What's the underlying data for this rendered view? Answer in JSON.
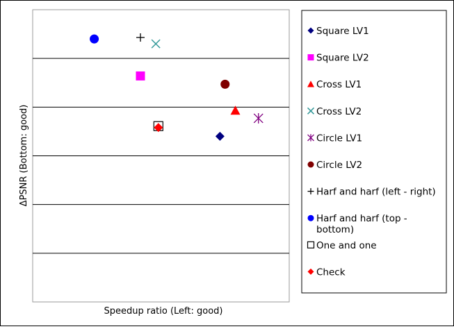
{
  "chart_data": {
    "type": "scatter",
    "xlabel": "Speedup ratio (Left: good)",
    "ylabel": "ΔPSNR (Bottom: good)",
    "xlim": [
      0,
      1
    ],
    "ylim": [
      0,
      6
    ],
    "grid": true,
    "legend_position": "right",
    "series": [
      {
        "name": "Square LV1",
        "marker": "diamond",
        "color": "#000080",
        "x": 0.73,
        "y": 3.4
      },
      {
        "name": "Square LV2",
        "marker": "square",
        "color": "#ff00ff",
        "x": 0.42,
        "y": 4.64
      },
      {
        "name": "Cross LV1",
        "marker": "triangle",
        "color": "#ff0000",
        "x": 0.79,
        "y": 3.93
      },
      {
        "name": "Cross LV2",
        "marker": "x",
        "color": "#339999",
        "x": 0.48,
        "y": 5.3
      },
      {
        "name": "Circle LV1",
        "marker": "asterisk",
        "color": "#800080",
        "x": 0.88,
        "y": 3.77
      },
      {
        "name": "Circle LV2",
        "marker": "circle",
        "color": "#800000",
        "x": 0.75,
        "y": 4.47
      },
      {
        "name": "Harf and harf (left - right)",
        "marker": "plus",
        "color": "#000000",
        "x": 0.42,
        "y": 5.43
      },
      {
        "name": "Harf and harf (top - bottom)",
        "marker": "circle",
        "color": "#0000ff",
        "x": 0.24,
        "y": 5.4
      },
      {
        "name": "One and one",
        "marker": "open-square",
        "color": "#000000",
        "x": 0.49,
        "y": 3.61
      },
      {
        "name": "Check",
        "marker": "diamond",
        "color": "#ff0000",
        "x": 0.49,
        "y": 3.58
      }
    ]
  }
}
